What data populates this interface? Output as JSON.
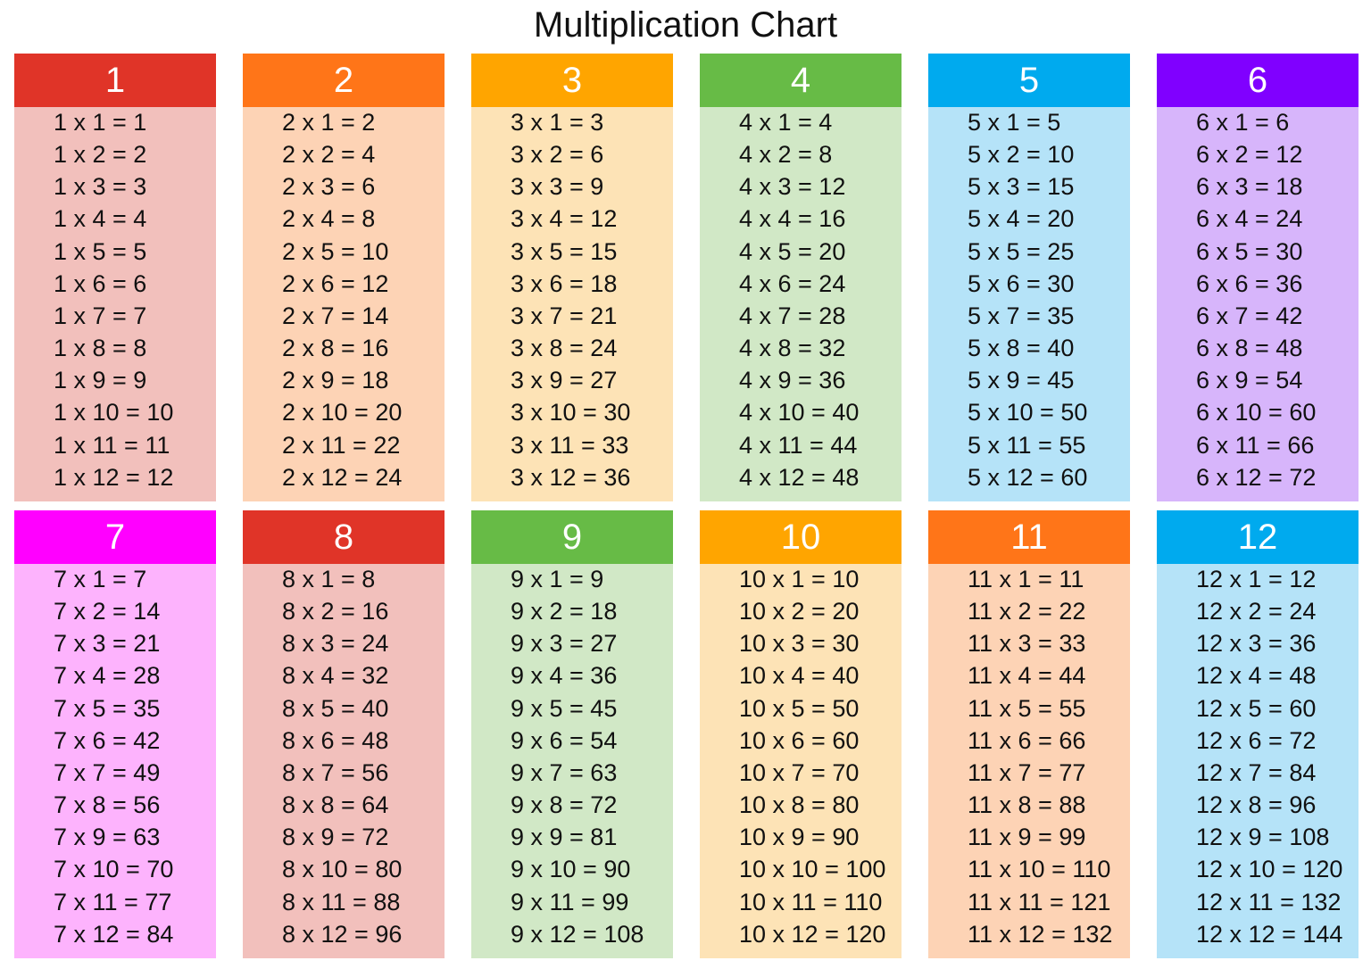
{
  "title": "Multiplication Chart",
  "cards": [
    {
      "header": "1",
      "header_color": "#e03428",
      "body_color": "#f2c0bc",
      "rows": [
        "1 x 1 = 1",
        "1 x 2 = 2",
        "1 x 3 = 3",
        "1 x 4 = 4",
        "1 x 5 = 5",
        "1 x 6 = 6",
        "1 x 7 = 7",
        "1 x 8 = 8",
        "1 x 9 = 9",
        "1 x 10 = 10",
        "1 x 11 = 11",
        "1 x 12 = 12"
      ]
    },
    {
      "header": "2",
      "header_color": "#ff7518",
      "body_color": "#fdd3b5",
      "rows": [
        "2 x 1 = 2",
        "2 x 2 = 4",
        "2 x 3 = 6",
        "2 x 4 = 8",
        "2 x 5 = 10",
        "2 x 6 = 12",
        "2 x 7 = 14",
        "2 x 8 = 16",
        "2 x 9 = 18",
        "2 x 10 = 20",
        "2 x 11 = 22",
        "2 x 12 = 24"
      ]
    },
    {
      "header": "3",
      "header_color": "#ffa500",
      "body_color": "#fde3b6",
      "rows": [
        "3 x 1 = 3",
        "3 x 2 = 6",
        "3 x 3 = 9",
        "3 x 4 = 12",
        "3 x 5 = 15",
        "3 x 6 = 18",
        "3 x 7 = 21",
        "3 x 8 = 24",
        "3 x 9 = 27",
        "3 x 10 = 30",
        "3 x 11 = 33",
        "3 x 12 = 36"
      ]
    },
    {
      "header": "4",
      "header_color": "#67bb46",
      "body_color": "#d1e8c6",
      "rows": [
        "4 x 1 = 4",
        "4 x 2 = 8",
        "4 x 3 = 12",
        "4 x 4 = 16",
        "4 x 5 = 20",
        "4 x 6 = 24",
        "4 x 7 = 28",
        "4 x 8 = 32",
        "4 x 9 = 36",
        "4 x 10 = 40",
        "4 x 11 = 44",
        "4 x 12 = 48"
      ]
    },
    {
      "header": "5",
      "header_color": "#00aaee",
      "body_color": "#b5e3f8",
      "rows": [
        "5 x 1 = 5",
        "5 x 2 = 10",
        "5 x 3 = 15",
        "5 x 4 = 20",
        "5 x 5 = 25",
        "5 x 6 = 30",
        "5 x 7 = 35",
        "5 x 8 = 40",
        "5 x 9 = 45",
        "5 x 10 = 50",
        "5 x 11 = 55",
        "5 x 12 = 60"
      ]
    },
    {
      "header": "6",
      "header_color": "#8000ff",
      "body_color": "#d7b5fb",
      "rows": [
        "6 x 1 = 6",
        "6 x 2 = 12",
        "6 x 3 = 18",
        "6 x 4 = 24",
        "6 x 5 = 30",
        "6 x 6 = 36",
        "6 x 7 = 42",
        "6 x 8 = 48",
        "6 x 9 = 54",
        "6 x 10 = 60",
        "6 x 11 = 66",
        "6 x 12 = 72"
      ]
    },
    {
      "header": "7",
      "header_color": "#ff00ff",
      "body_color": "#fdb3fd",
      "rows": [
        "7 x 1 = 7",
        "7 x 2 = 14",
        "7 x 3 = 21",
        "7 x 4 = 28",
        "7 x 5 = 35",
        "7 x 6 = 42",
        "7 x 7 = 49",
        "7 x 8 = 56",
        "7 x 9 = 63",
        "7 x 10 = 70",
        "7 x 11 = 77",
        "7 x 12 = 84"
      ]
    },
    {
      "header": "8",
      "header_color": "#e03428",
      "body_color": "#f2c0bc",
      "rows": [
        "8 x 1 = 8",
        "8 x 2 = 16",
        "8 x 3 = 24",
        "8 x 4 = 32",
        "8 x 5 = 40",
        "8 x 6 = 48",
        "8 x 7 = 56",
        "8 x 8 = 64",
        "8 x 9 = 72",
        "8 x 10 = 80",
        "8 x 11 = 88",
        "8 x 12 = 96"
      ]
    },
    {
      "header": "9",
      "header_color": "#67bb46",
      "body_color": "#d1e8c6",
      "rows": [
        "9 x 1 = 9",
        "9 x 2 = 18",
        "9 x 3 = 27",
        "9 x 4 = 36",
        "9 x 5 = 45",
        "9 x 6 = 54",
        "9 x 7 = 63",
        "9 x 8 = 72",
        "9 x 9 = 81",
        "9 x 10 = 90",
        "9 x 11 = 99",
        "9 x 12 = 108"
      ]
    },
    {
      "header": "10",
      "header_color": "#ffa500",
      "body_color": "#fde3b6",
      "rows": [
        "10 x 1 = 10",
        "10 x 2 = 20",
        "10 x 3 = 30",
        "10 x 4 = 40",
        "10 x 5 = 50",
        "10 x 6 = 60",
        "10 x 7 = 70",
        "10 x 8 = 80",
        "10 x 9 = 90",
        "10 x 10 = 100",
        "10 x 11 = 110",
        "10 x 12 = 120"
      ]
    },
    {
      "header": "11",
      "header_color": "#ff7518",
      "body_color": "#fdd3b5",
      "rows": [
        "11 x 1 = 11",
        "11 x 2 = 22",
        "11 x 3 = 33",
        "11 x 4 = 44",
        "11 x 5 = 55",
        "11 x 6 = 66",
        "11 x 7 = 77",
        "11 x 8 = 88",
        "11 x 9 = 99",
        "11 x 10 = 110",
        "11 x 11 = 121",
        "11 x 12 = 132"
      ]
    },
    {
      "header": "12",
      "header_color": "#00aaee",
      "body_color": "#b5e3f8",
      "rows": [
        "12 x 1 = 12",
        "12 x 2 = 24",
        "12 x 3 = 36",
        "12 x 4 = 48",
        "12 x 5 = 60",
        "12 x 6 = 72",
        "12 x 7 = 84",
        "12 x 8 = 96",
        "12 x 9 = 108",
        "12 x 10 = 120",
        "12 x 11 = 132",
        "12 x 12 = 144"
      ]
    }
  ]
}
